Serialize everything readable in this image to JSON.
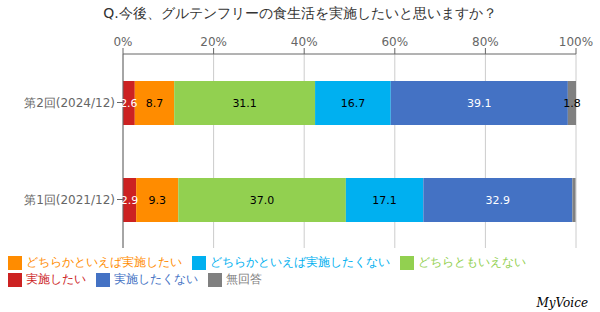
{
  "chart_data": {
    "type": "bar",
    "orientation": "horizontal",
    "stacked": true,
    "title": "Q.今後、グルテンフリーの食生活を実施したいと思いますか？",
    "categories": [
      "第2回(2024/12)",
      "第1回(2021/12)"
    ],
    "series": [
      {
        "name": "実施したい",
        "color": "#cc2222",
        "values": [
          2.6,
          2.9
        ],
        "value_labels": [
          "2.6",
          "2.9"
        ]
      },
      {
        "name": "どちらかといえば実施したい",
        "color": "#ff8c00",
        "values": [
          8.7,
          9.3
        ],
        "value_labels": [
          "8.7",
          "9.3"
        ]
      },
      {
        "name": "どちらともいえない",
        "color": "#92d050",
        "values": [
          31.1,
          37.0
        ],
        "value_labels": [
          "31.1",
          "37.0"
        ]
      },
      {
        "name": "どちらかといえば実施したくない",
        "color": "#00b0f0",
        "values": [
          16.7,
          17.1
        ],
        "value_labels": [
          "16.7",
          "17.1"
        ]
      },
      {
        "name": "実施したくない",
        "color": "#4472c4",
        "values": [
          39.1,
          32.9
        ],
        "value_labels": [
          "39.1",
          "32.9"
        ]
      },
      {
        "name": "無回答",
        "color": "#808080",
        "values": [
          1.8,
          0.7
        ],
        "value_labels": [
          "1.8",
          null
        ]
      }
    ],
    "xlim": [
      0,
      100
    ],
    "xticks": [
      {
        "value": 0,
        "label": "0%"
      },
      {
        "value": 20,
        "label": "20%"
      },
      {
        "value": 40,
        "label": "40%"
      },
      {
        "value": 60,
        "label": "60%"
      },
      {
        "value": 80,
        "label": "80%"
      },
      {
        "value": 100,
        "label": "100%"
      }
    ],
    "grid": true,
    "data_labels": true,
    "legend": "bottom",
    "annotations": [
      "MyVoice"
    ]
  }
}
